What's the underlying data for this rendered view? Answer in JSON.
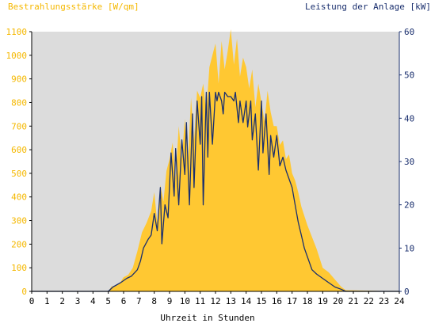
{
  "chart_data": {
    "type": "area",
    "left_axis_title": "Bestrahlungsstärke [W/qm]",
    "right_axis_title": "Leistung der Anlage [kW]",
    "xlabel": "Uhrzeit in Stunden",
    "x_ticks": [
      "0",
      "1",
      "2",
      "3",
      "4",
      "5",
      "6",
      "7",
      "8",
      "9",
      "10",
      "11",
      "12",
      "13",
      "14",
      "15",
      "16",
      "17",
      "18",
      "19",
      "20",
      "21",
      "22",
      "23",
      "24"
    ],
    "y_left_ticks": [
      "0",
      "100",
      "200",
      "300",
      "400",
      "500",
      "600",
      "700",
      "800",
      "900",
      "1000",
      "1100"
    ],
    "y_right_ticks": [
      "0",
      "10",
      "20",
      "30",
      "40",
      "50",
      "60"
    ],
    "xlim": [
      0,
      24
    ],
    "ylim_left": [
      0,
      1100
    ],
    "ylim_right": [
      0,
      60
    ],
    "grid": false,
    "colors": {
      "plot_background": "#dcdcdc",
      "irradiance_fill": "#ffc832",
      "power_line": "#1a2f6e",
      "left_axis_text": "#f5b800",
      "right_axis_text": "#1a2f6e"
    },
    "series": [
      {
        "axis": "left",
        "render": "area",
        "x": [
          0,
          5.0,
          5.2,
          5.5,
          5.8,
          6.0,
          6.3,
          6.6,
          6.9,
          7.2,
          7.5,
          7.8,
          8.0,
          8.2,
          8.4,
          8.6,
          8.8,
          9.0,
          9.2,
          9.4,
          9.6,
          9.8,
          10.0,
          10.2,
          10.4,
          10.6,
          10.8,
          11.0,
          11.2,
          11.4,
          11.6,
          11.8,
          12.0,
          12.2,
          12.4,
          12.6,
          12.8,
          13.0,
          13.2,
          13.4,
          13.6,
          13.8,
          14.0,
          14.2,
          14.4,
          14.6,
          14.8,
          15.0,
          15.2,
          15.4,
          15.6,
          15.8,
          16.0,
          16.2,
          16.4,
          16.6,
          16.8,
          17.0,
          17.2,
          17.4,
          17.6,
          17.8,
          18.0,
          18.3,
          18.6,
          19.0,
          19.4,
          19.8,
          20.2,
          20.5,
          24
        ],
        "values": [
          0,
          0,
          20,
          25,
          40,
          60,
          70,
          100,
          170,
          250,
          290,
          340,
          420,
          290,
          450,
          380,
          510,
          560,
          630,
          480,
          700,
          560,
          730,
          540,
          820,
          640,
          850,
          820,
          880,
          760,
          950,
          1000,
          1050,
          880,
          1060,
          940,
          1020,
          1110,
          960,
          1070,
          910,
          990,
          950,
          860,
          940,
          780,
          880,
          800,
          720,
          850,
          760,
          700,
          700,
          620,
          640,
          560,
          580,
          500,
          470,
          420,
          360,
          320,
          280,
          230,
          180,
          100,
          80,
          50,
          20,
          5,
          0
        ]
      },
      {
        "axis": "right",
        "render": "line",
        "x": [
          0,
          5.0,
          5.3,
          5.8,
          6.2,
          6.5,
          6.9,
          7.1,
          7.3,
          7.6,
          7.8,
          8.0,
          8.2,
          8.4,
          8.5,
          8.7,
          8.9,
          9.1,
          9.3,
          9.4,
          9.6,
          9.8,
          10.0,
          10.1,
          10.3,
          10.5,
          10.6,
          10.8,
          11.0,
          11.1,
          11.2,
          11.4,
          11.5,
          11.6,
          11.8,
          12.0,
          12.1,
          12.2,
          12.4,
          12.5,
          12.6,
          12.8,
          13.0,
          13.2,
          13.3,
          13.5,
          13.6,
          13.8,
          14.0,
          14.1,
          14.3,
          14.4,
          14.6,
          14.8,
          15.0,
          15.1,
          15.3,
          15.5,
          15.6,
          15.8,
          16.0,
          16.2,
          16.4,
          16.6,
          16.8,
          17.0,
          17.2,
          17.4,
          17.6,
          17.8,
          18.0,
          18.3,
          18.6,
          19.0,
          19.4,
          19.8,
          20.2,
          20.5,
          24
        ],
        "values": [
          0,
          0,
          1,
          2,
          3,
          3.5,
          5,
          7,
          10,
          12,
          13,
          18,
          14,
          24,
          11,
          20,
          17,
          32,
          22,
          33,
          20,
          35,
          27,
          39,
          20,
          41,
          24,
          44,
          34,
          45,
          20,
          46,
          31,
          46,
          34,
          46,
          44,
          46,
          44,
          41,
          46,
          45,
          45,
          44,
          46,
          39,
          44,
          39,
          44,
          38,
          44,
          35,
          41,
          28,
          44,
          32,
          41,
          27,
          36,
          31,
          36,
          29,
          31,
          28,
          26,
          24,
          20,
          16,
          13,
          10,
          8,
          5,
          4,
          3,
          2,
          1,
          0.5,
          0,
          0
        ]
      }
    ]
  }
}
